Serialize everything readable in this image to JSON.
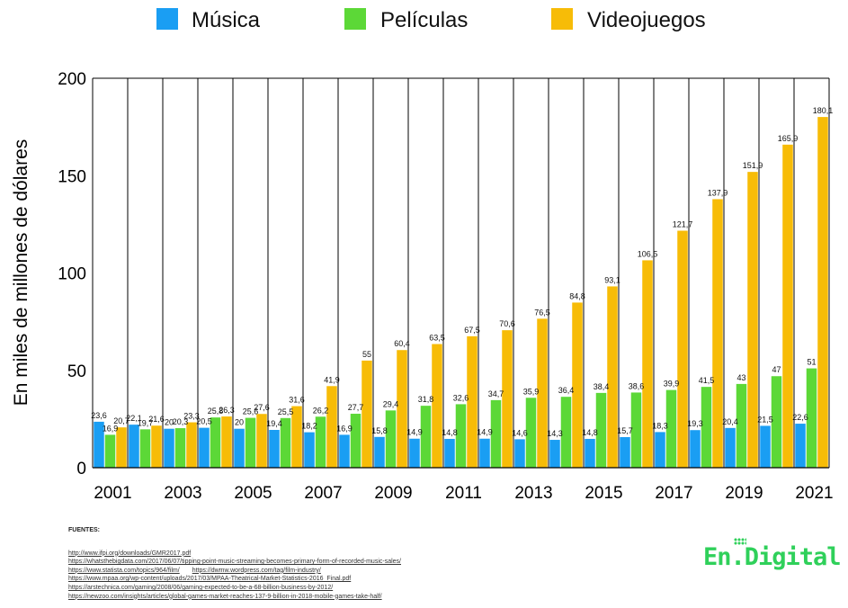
{
  "legend": [
    {
      "name": "Música",
      "color": "#1a9ef3"
    },
    {
      "name": "Películas",
      "color": "#5cd837"
    },
    {
      "name": "Videojuegos",
      "color": "#f7bc07"
    }
  ],
  "chart_data": {
    "type": "bar",
    "ylabel": "En miles de millones de dólares",
    "ylim": [
      0,
      200
    ],
    "yticks": [
      0,
      50,
      100,
      150,
      200
    ],
    "grid": "vertical year separators",
    "legend_position": "top",
    "categories": [
      "2001",
      "2002",
      "2003",
      "2004",
      "2005",
      "2006",
      "2007",
      "2008",
      "2009",
      "2010",
      "2011",
      "2012",
      "2013",
      "2014",
      "2015",
      "2016",
      "2017",
      "2018",
      "2019",
      "2020",
      "2021"
    ],
    "xtick_labels": [
      "2001",
      "2003",
      "2005",
      "2007",
      "2009",
      "2011",
      "2013",
      "2015",
      "2017",
      "2019",
      "2021"
    ],
    "series": [
      {
        "name": "Música",
        "color": "#1a9ef3",
        "values": [
          23.6,
          22.1,
          20,
          20.5,
          20,
          19.4,
          18.2,
          16.9,
          15.8,
          14.9,
          14.8,
          14.9,
          14.6,
          14.3,
          14.8,
          15.7,
          18.3,
          19.3,
          20.4,
          21.5,
          22.6
        ],
        "labels": [
          "23,6",
          "22,1",
          "20",
          "20,5",
          "20",
          "19,4",
          "18,2",
          "16,9",
          "15,8",
          "14,9",
          "14,8",
          "14,9",
          "14,6",
          "14,3",
          "14,8",
          "15,7",
          "18,3",
          "19,3",
          "20,4",
          "21,5",
          "22,6"
        ]
      },
      {
        "name": "Películas",
        "color": "#5cd837",
        "values": [
          16.9,
          19.7,
          20.3,
          25.8,
          25.6,
          25.5,
          26.2,
          27.7,
          29.4,
          31.8,
          32.6,
          34.7,
          35.9,
          36.4,
          38.4,
          38.6,
          39.9,
          41.5,
          43,
          47,
          51
        ],
        "labels": [
          "16,9",
          "19,7",
          "20,3",
          "25,8",
          "25,6",
          "25,5",
          "26,2",
          "27,7",
          "29,4",
          "31,8",
          "32,6",
          "34,7",
          "35,9",
          "36,4",
          "38,4",
          "38,6",
          "39,9",
          "41,5",
          "43",
          "47",
          "51"
        ]
      },
      {
        "name": "Videojuegos",
        "color": "#f7bc07",
        "values": [
          20.7,
          21.6,
          23.3,
          26.3,
          27.6,
          31.6,
          41.9,
          55,
          60.4,
          63.5,
          67.5,
          70.6,
          76.5,
          84.8,
          93.1,
          106.5,
          121.7,
          137.9,
          151.9,
          165.9,
          180.1
        ],
        "labels": [
          "20,7",
          "21,6",
          "23,3",
          "26,3",
          "27,6",
          "31,6",
          "41,9",
          "55",
          "60,4",
          "63,5",
          "67,5",
          "70,6",
          "76,5",
          "84,8",
          "93,1",
          "106,5",
          "121,7",
          "137,9",
          "151,9",
          "165,9",
          "180,1"
        ]
      }
    ]
  },
  "sources": {
    "title": "FUENTES:",
    "links": [
      "http://www.ifpi.org/downloads/GMR2017.pdf",
      "https://whatsthebigdata.com/2017/06/07/tipping-point-music-streaming-becomes-primary-form-of-recorded-music-sales/",
      "https://www.statista.com/topics/964/film/",
      "https://dwmw.wordpress.com/tag/film-industry/",
      "https://www.mpaa.org/wp-content/uploads/2017/03/MPAA-Theatrical-Market-Statistics-2016_Final.pdf",
      "https://arstechnica.com/gaming/2008/06/gaming-expected-to-be-a-68-billion-business-by-2012/",
      "https://newzoo.com/insights/articles/global-games-market-reaches-137-9-billion-in-2018-mobile-games-take-half/"
    ]
  },
  "brand": {
    "name": "En.Digital",
    "color": "#2fd05a"
  }
}
